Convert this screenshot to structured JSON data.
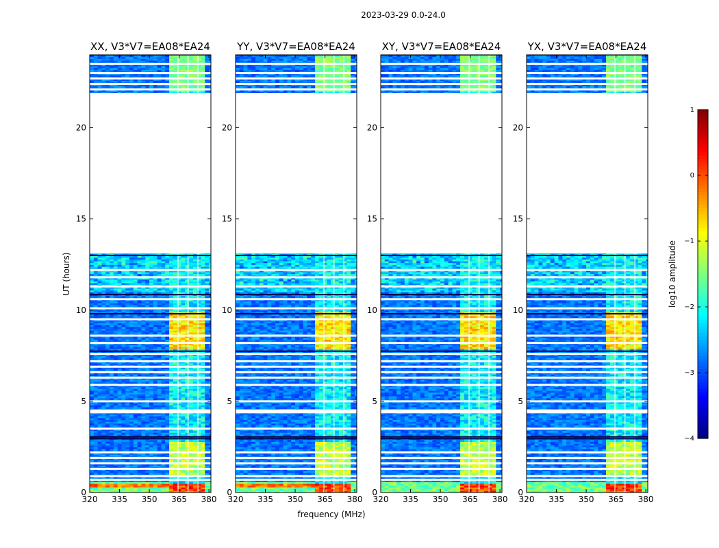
{
  "figure": {
    "suptitle": "2023-03-29 0.0-24.0"
  },
  "chart_data": {
    "type": "heatmap",
    "xlabel": "frequency (MHz)",
    "ylabel": "UT (hours)",
    "xlim": [
      320,
      381
    ],
    "ylim": [
      0,
      24
    ],
    "xticks": [
      320,
      335,
      350,
      365,
      380
    ],
    "yticks": [
      0,
      5,
      10,
      15,
      20
    ],
    "panels": [
      {
        "title": "XX, V3*V7=EA08*EA24"
      },
      {
        "title": "YY, V3*V7=EA08*EA24"
      },
      {
        "title": "XY, V3*V7=EA08*EA24"
      },
      {
        "title": "YX, V3*V7=EA08*EA24"
      }
    ],
    "data_gap_hours": [
      13.1,
      21.9
    ],
    "rfi_band_mhz": [
      360,
      378
    ],
    "rfi_channel_gaps_mhz": [
      364.5,
      369.5,
      374.5
    ],
    "colorbar": {
      "label": "log10 amplitude",
      "min": -4,
      "max": 1,
      "ticks": [
        1,
        0,
        -1,
        -2,
        -3,
        -4
      ],
      "colormap": "jet",
      "colors": [
        "#00007f",
        "#0000ff",
        "#007fff",
        "#00ffff",
        "#7fff7f",
        "#ffff00",
        "#ff7f00",
        "#ff0000",
        "#7f0000"
      ]
    }
  }
}
